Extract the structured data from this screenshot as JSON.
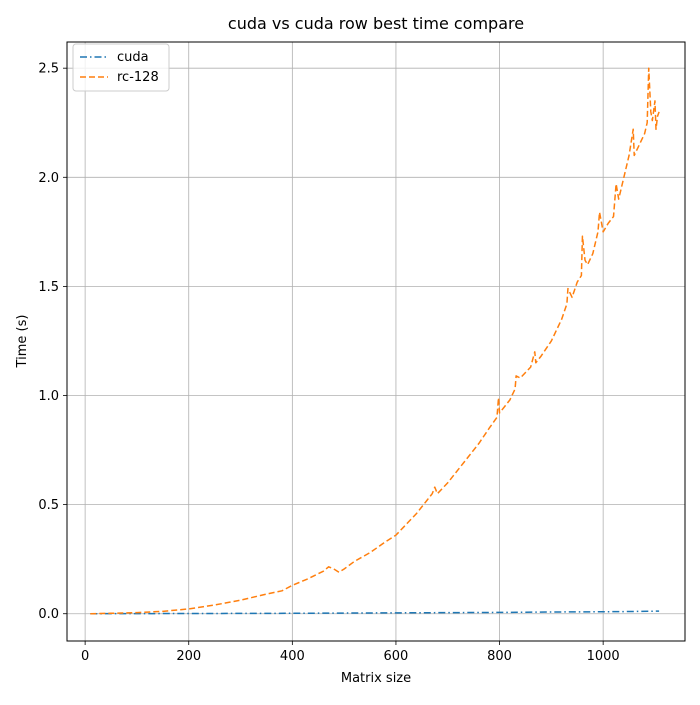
{
  "chart_data": {
    "type": "line",
    "title": "cuda vs cuda row best time compare",
    "xlabel": "Matrix size",
    "ylabel": "Time (s)",
    "xlim": [
      -35,
      1158
    ],
    "ylim": [
      -0.125,
      2.62
    ],
    "xticks": [
      0,
      200,
      400,
      600,
      800,
      1000
    ],
    "yticks": [
      0.0,
      0.5,
      1.0,
      1.5,
      2.0,
      2.5
    ],
    "xtick_labels": [
      "0",
      "200",
      "400",
      "600",
      "800",
      "1000"
    ],
    "ytick_labels": [
      "0.0",
      "0.5",
      "1.0",
      "1.5",
      "2.0",
      "2.5"
    ],
    "grid": true,
    "legend_position": "upper-left",
    "series": [
      {
        "name": "cuda",
        "color": "#1f77b4",
        "dash": "dashdot",
        "x": [
          10,
          100,
          200,
          300,
          400,
          500,
          600,
          700,
          800,
          900,
          1000,
          1050,
          1108
        ],
        "y": [
          0.0,
          0.0005,
          0.001,
          0.0015,
          0.002,
          0.003,
          0.004,
          0.005,
          0.006,
          0.008,
          0.009,
          0.01,
          0.012
        ]
      },
      {
        "name": "rc-128",
        "color": "#ff7f0e",
        "dash": "dashed",
        "x": [
          10,
          50,
          100,
          150,
          200,
          250,
          300,
          350,
          380,
          400,
          430,
          460,
          470,
          480,
          490,
          500,
          520,
          550,
          580,
          600,
          620,
          640,
          660,
          670,
          675,
          680,
          700,
          720,
          740,
          760,
          780,
          795,
          798,
          800,
          820,
          830,
          832,
          840,
          860,
          868,
          870,
          880,
          900,
          920,
          930,
          932,
          940,
          950,
          958,
          960,
          965,
          970,
          980,
          990,
          993,
          1000,
          1010,
          1020,
          1025,
          1030,
          1040,
          1050,
          1058,
          1060,
          1070,
          1080,
          1085,
          1088,
          1092,
          1095,
          1100,
          1102,
          1105,
          1108
        ],
        "y": [
          0.0,
          0.002,
          0.005,
          0.011,
          0.022,
          0.04,
          0.062,
          0.09,
          0.105,
          0.13,
          0.16,
          0.195,
          0.215,
          0.205,
          0.19,
          0.205,
          0.24,
          0.28,
          0.33,
          0.36,
          0.41,
          0.46,
          0.52,
          0.55,
          0.58,
          0.55,
          0.6,
          0.66,
          0.72,
          0.78,
          0.85,
          0.9,
          0.99,
          0.92,
          0.98,
          1.03,
          1.09,
          1.08,
          1.13,
          1.2,
          1.15,
          1.18,
          1.25,
          1.35,
          1.42,
          1.49,
          1.45,
          1.52,
          1.55,
          1.73,
          1.62,
          1.6,
          1.65,
          1.75,
          1.84,
          1.75,
          1.79,
          1.82,
          1.97,
          1.9,
          2.0,
          2.1,
          2.22,
          2.1,
          2.15,
          2.2,
          2.25,
          2.5,
          2.3,
          2.26,
          2.35,
          2.22,
          2.28,
          2.3
        ]
      }
    ]
  }
}
